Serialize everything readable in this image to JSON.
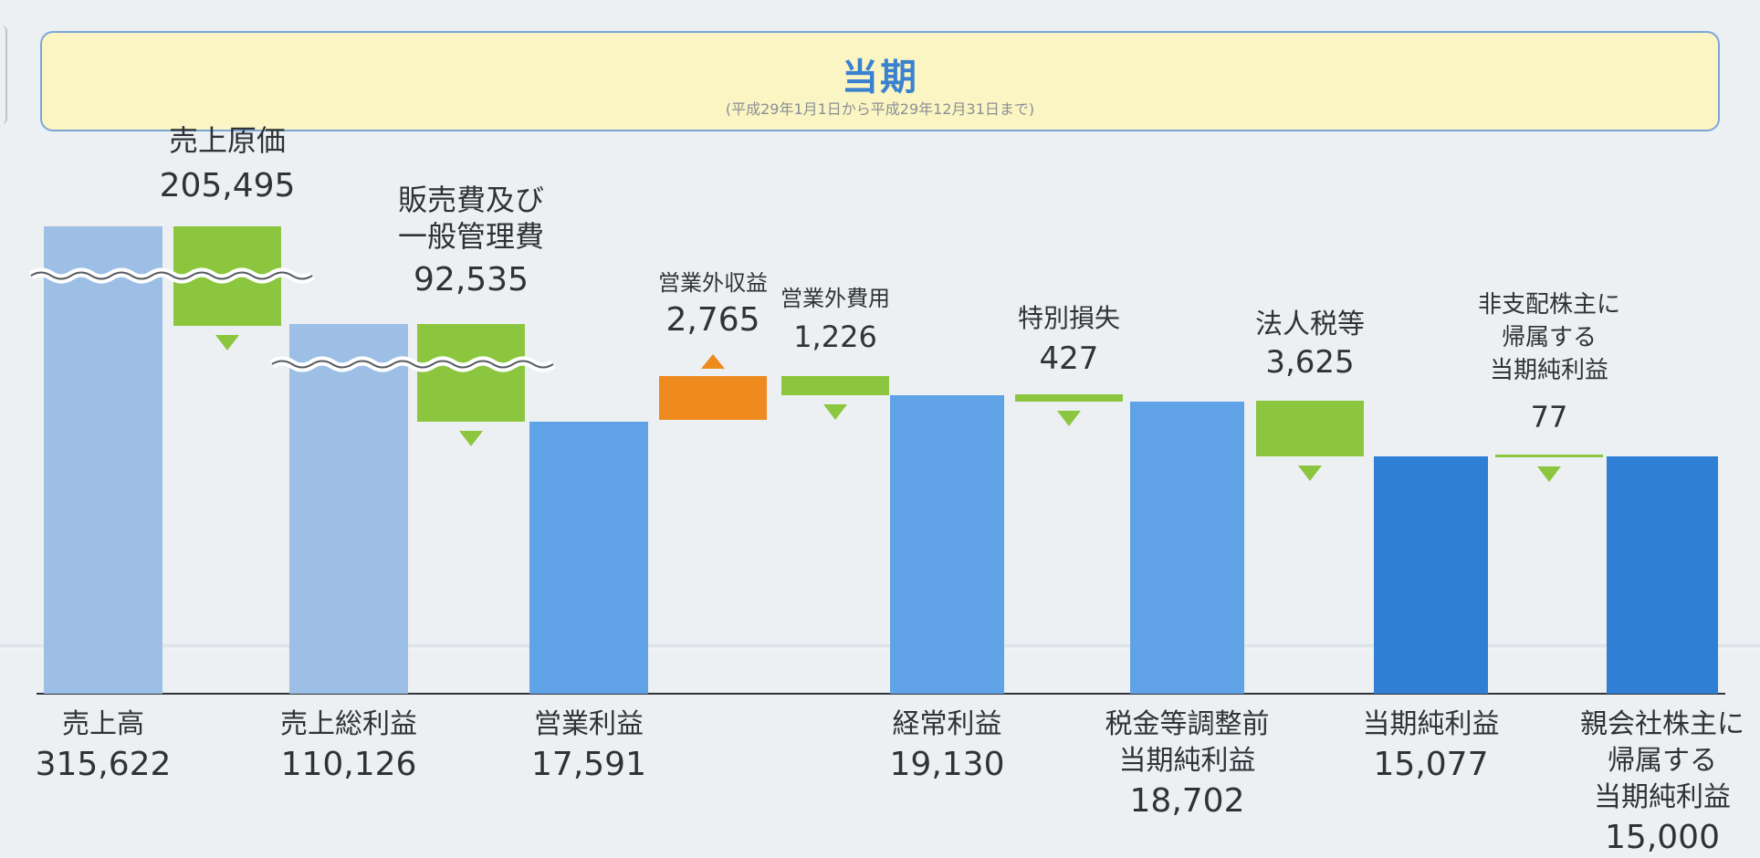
{
  "header": {
    "title": "当期",
    "subtitle": "(平成29年1月1日から平成29年12月31日まで)"
  },
  "colors": {
    "base_bar_light": "#9dbfe6",
    "base_bar_mid": "#5fa2e6",
    "base_bar_dark": "#2f7fd4",
    "decrease": "#8cc63f",
    "increase": "#ee8a1e"
  },
  "chart_data": {
    "type": "waterfall",
    "unit": "",
    "ylim": [
      0,
      315622
    ],
    "axis_break": true,
    "bars": [
      {
        "id": "sales",
        "kind": "total",
        "label_lines": [
          "売上高"
        ],
        "value": 315622,
        "value_text": "315,622"
      },
      {
        "id": "cogs",
        "kind": "decrease",
        "label_lines": [
          "売上原価"
        ],
        "value": 205495,
        "value_text": "205,495"
      },
      {
        "id": "gross",
        "kind": "total",
        "label_lines": [
          "売上総利益"
        ],
        "value": 110126,
        "value_text": "110,126"
      },
      {
        "id": "sga",
        "kind": "decrease",
        "label_lines": [
          "販売費及び",
          "一般管理費"
        ],
        "value": 92535,
        "value_text": "92,535"
      },
      {
        "id": "op",
        "kind": "total",
        "label_lines": [
          "営業利益"
        ],
        "value": 17591,
        "value_text": "17,591"
      },
      {
        "id": "nonop_inc",
        "kind": "increase",
        "label_lines": [
          "営業外収益"
        ],
        "value": 2765,
        "value_text": "2,765"
      },
      {
        "id": "nonop_exp",
        "kind": "decrease",
        "label_lines": [
          "営業外費用"
        ],
        "value": 1226,
        "value_text": "1,226"
      },
      {
        "id": "ordinary",
        "kind": "total",
        "label_lines": [
          "経常利益"
        ],
        "value": 19130,
        "value_text": "19,130"
      },
      {
        "id": "special_loss",
        "kind": "decrease",
        "label_lines": [
          "特別損失"
        ],
        "value": 427,
        "value_text": "427"
      },
      {
        "id": "pretax",
        "kind": "total",
        "label_lines": [
          "税金等調整前",
          "当期純利益"
        ],
        "value": 18702,
        "value_text": "18,702"
      },
      {
        "id": "taxes",
        "kind": "decrease",
        "label_lines": [
          "法人税等"
        ],
        "value": 3625,
        "value_text": "3,625"
      },
      {
        "id": "net",
        "kind": "total",
        "label_lines": [
          "当期純利益"
        ],
        "value": 15077,
        "value_text": "15,077"
      },
      {
        "id": "minority",
        "kind": "decrease",
        "label_lines": [
          "非支配株主に",
          "帰属する",
          "当期純利益"
        ],
        "value": 77,
        "value_text": "77"
      },
      {
        "id": "parent_net",
        "kind": "total",
        "label_lines": [
          "親会社株主に",
          "帰属する",
          "当期純利益"
        ],
        "value": 15000,
        "value_text": "15,000"
      }
    ]
  }
}
